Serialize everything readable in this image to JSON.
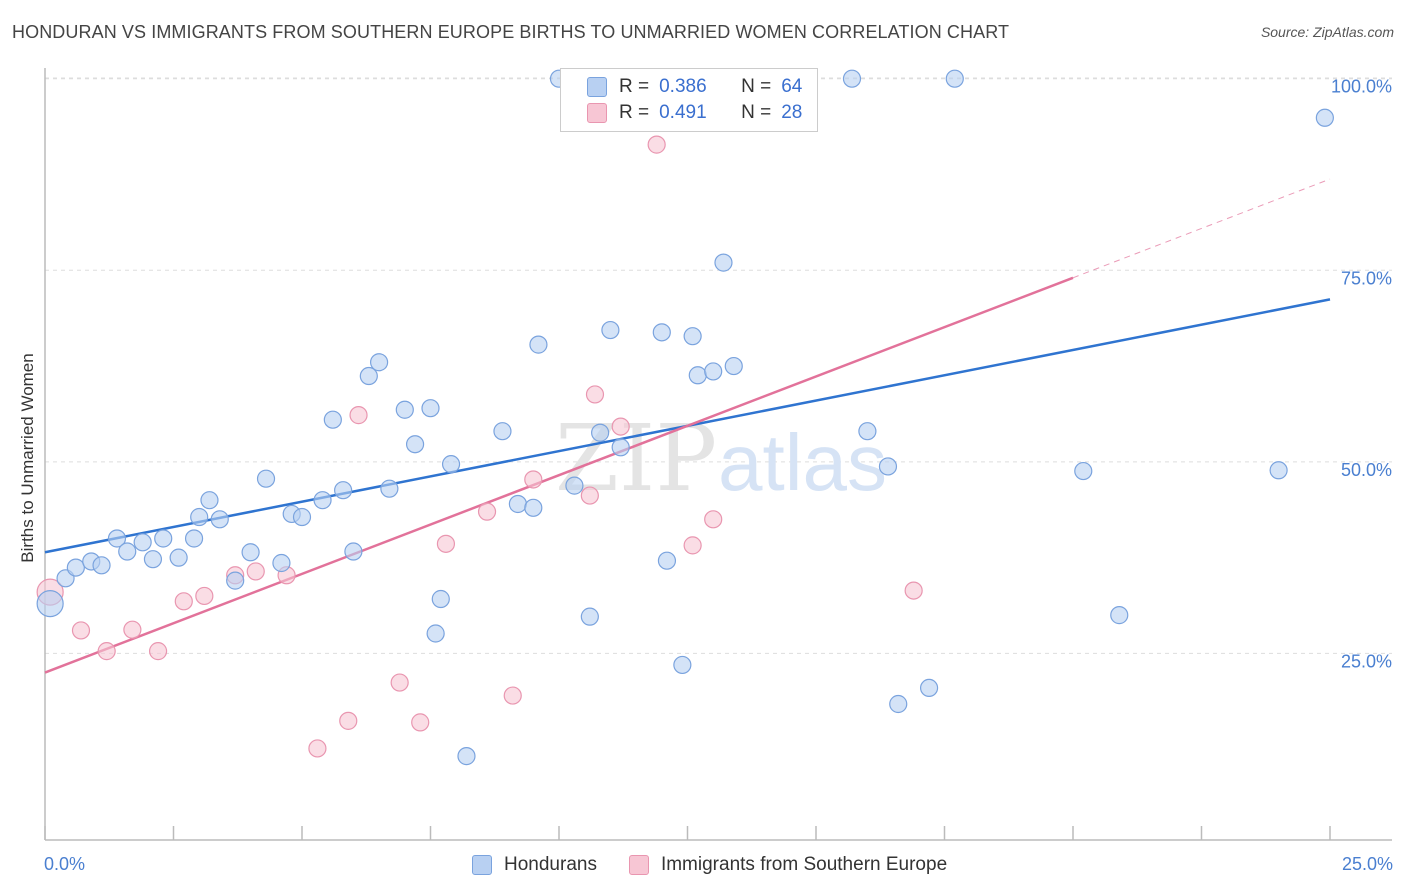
{
  "header": {
    "title": "HONDURAN VS IMMIGRANTS FROM SOUTHERN EUROPE BIRTHS TO UNMARRIED WOMEN CORRELATION CHART",
    "source": "Source: ZipAtlas.com"
  },
  "legend_top": {
    "rows": [
      {
        "r_label": "R =",
        "r_value": "0.386",
        "n_label": "N =",
        "n_value": "64"
      },
      {
        "r_label": "R =",
        "r_value": "0.491",
        "n_label": "N =",
        "n_value": "28"
      }
    ]
  },
  "legend_bottom": {
    "items": [
      "Hondurans",
      "Immigrants from Southern Europe"
    ]
  },
  "watermark": {
    "zip": "ZIP",
    "atlas": "atlas"
  },
  "colors": {
    "blue_fill": "#b8d0f2",
    "blue_stroke": "#7aa3de",
    "blue_line": "#2f74d0",
    "pink_fill": "#f7c6d4",
    "pink_stroke": "#e996b0",
    "pink_line": "#e2729a",
    "tick_text": "#4a7fd0",
    "grid": "#dddddd"
  },
  "chart_data": {
    "type": "scatter",
    "title": "HONDURAN VS IMMIGRANTS FROM SOUTHERN EUROPE BIRTHS TO UNMARRIED WOMEN CORRELATION CHART",
    "xlabel": "",
    "ylabel": "Births to Unmarried Women",
    "xlim": [
      0,
      25
    ],
    "ylim": [
      0,
      102
    ],
    "x_tick_labels": [
      "0.0%",
      "25.0%"
    ],
    "y_ticks": [
      25,
      50,
      75,
      100
    ],
    "y_tick_labels": [
      "25.0%",
      "50.0%",
      "75.0%",
      "100.0%"
    ],
    "grid": true,
    "legend_position": "top-center",
    "series": [
      {
        "name": "Hondurans",
        "r": 0.386,
        "n": 64,
        "trend": {
          "x": [
            0,
            25
          ],
          "y": [
            38.2,
            71.2
          ],
          "dashed_from": null
        },
        "points": [
          [
            0.1,
            31.5
          ],
          [
            0.4,
            34.8
          ],
          [
            0.6,
            36.2
          ],
          [
            0.9,
            37
          ],
          [
            1.1,
            36.5
          ],
          [
            1.4,
            40
          ],
          [
            1.6,
            38.3
          ],
          [
            1.9,
            39.5
          ],
          [
            2.1,
            37.3
          ],
          [
            2.3,
            40
          ],
          [
            2.6,
            37.5
          ],
          [
            2.9,
            40
          ],
          [
            3.0,
            42.8
          ],
          [
            3.2,
            45
          ],
          [
            3.4,
            42.5
          ],
          [
            3.7,
            34.5
          ],
          [
            4.0,
            38.2
          ],
          [
            4.3,
            47.8
          ],
          [
            4.6,
            36.8
          ],
          [
            4.8,
            43.2
          ],
          [
            5.0,
            42.8
          ],
          [
            5.4,
            45
          ],
          [
            5.6,
            55.5
          ],
          [
            5.8,
            46.3
          ],
          [
            6.0,
            38.3
          ],
          [
            6.3,
            61.2
          ],
          [
            6.5,
            63
          ],
          [
            6.7,
            46.5
          ],
          [
            7.0,
            56.8
          ],
          [
            7.2,
            52.3
          ],
          [
            7.5,
            57
          ],
          [
            7.6,
            27.6
          ],
          [
            7.7,
            32.1
          ],
          [
            7.9,
            49.7
          ],
          [
            8.2,
            11.6
          ],
          [
            8.9,
            54
          ],
          [
            9.2,
            44.5
          ],
          [
            9.5,
            44
          ],
          [
            9.6,
            65.3
          ],
          [
            10.0,
            100
          ],
          [
            10.3,
            46.9
          ],
          [
            10.6,
            29.8
          ],
          [
            10.8,
            53.8
          ],
          [
            11.0,
            67.2
          ],
          [
            11.2,
            51.9
          ],
          [
            11.9,
            100
          ],
          [
            12.0,
            66.9
          ],
          [
            12.1,
            37.1
          ],
          [
            12.4,
            23.5
          ],
          [
            12.6,
            66.4
          ],
          [
            12.7,
            61.3
          ],
          [
            13.0,
            61.8
          ],
          [
            13.2,
            76
          ],
          [
            13.4,
            62.5
          ],
          [
            15.7,
            100
          ],
          [
            16.0,
            54
          ],
          [
            16.4,
            49.4
          ],
          [
            16.6,
            18.4
          ],
          [
            17.2,
            20.5
          ],
          [
            17.7,
            100
          ],
          [
            20.2,
            48.8
          ],
          [
            20.9,
            30
          ],
          [
            24.0,
            48.9
          ],
          [
            24.9,
            94.9
          ]
        ]
      },
      {
        "name": "Immigrants from Southern Europe",
        "r": 0.491,
        "n": 28,
        "trend": {
          "x": [
            0,
            25
          ],
          "y": [
            22.5,
            86.9
          ],
          "dashed_from": 20
        },
        "points": [
          [
            0.1,
            33
          ],
          [
            0.7,
            28
          ],
          [
            1.2,
            25.3
          ],
          [
            1.7,
            28.1
          ],
          [
            2.2,
            25.3
          ],
          [
            2.7,
            31.8
          ],
          [
            3.1,
            32.5
          ],
          [
            3.7,
            35.2
          ],
          [
            4.1,
            35.7
          ],
          [
            4.7,
            35.2
          ],
          [
            5.3,
            12.6
          ],
          [
            5.9,
            16.2
          ],
          [
            6.1,
            56.1
          ],
          [
            6.9,
            21.2
          ],
          [
            7.3,
            16
          ],
          [
            7.8,
            39.3
          ],
          [
            8.6,
            43.5
          ],
          [
            9.1,
            19.5
          ],
          [
            9.5,
            47.7
          ],
          [
            10.2,
            100
          ],
          [
            10.6,
            45.6
          ],
          [
            10.7,
            58.8
          ],
          [
            11.2,
            54.6
          ],
          [
            11.9,
            91.4
          ],
          [
            12.6,
            39.1
          ],
          [
            13.0,
            42.5
          ],
          [
            13.1,
            100
          ],
          [
            16.9,
            33.2
          ]
        ]
      }
    ]
  }
}
